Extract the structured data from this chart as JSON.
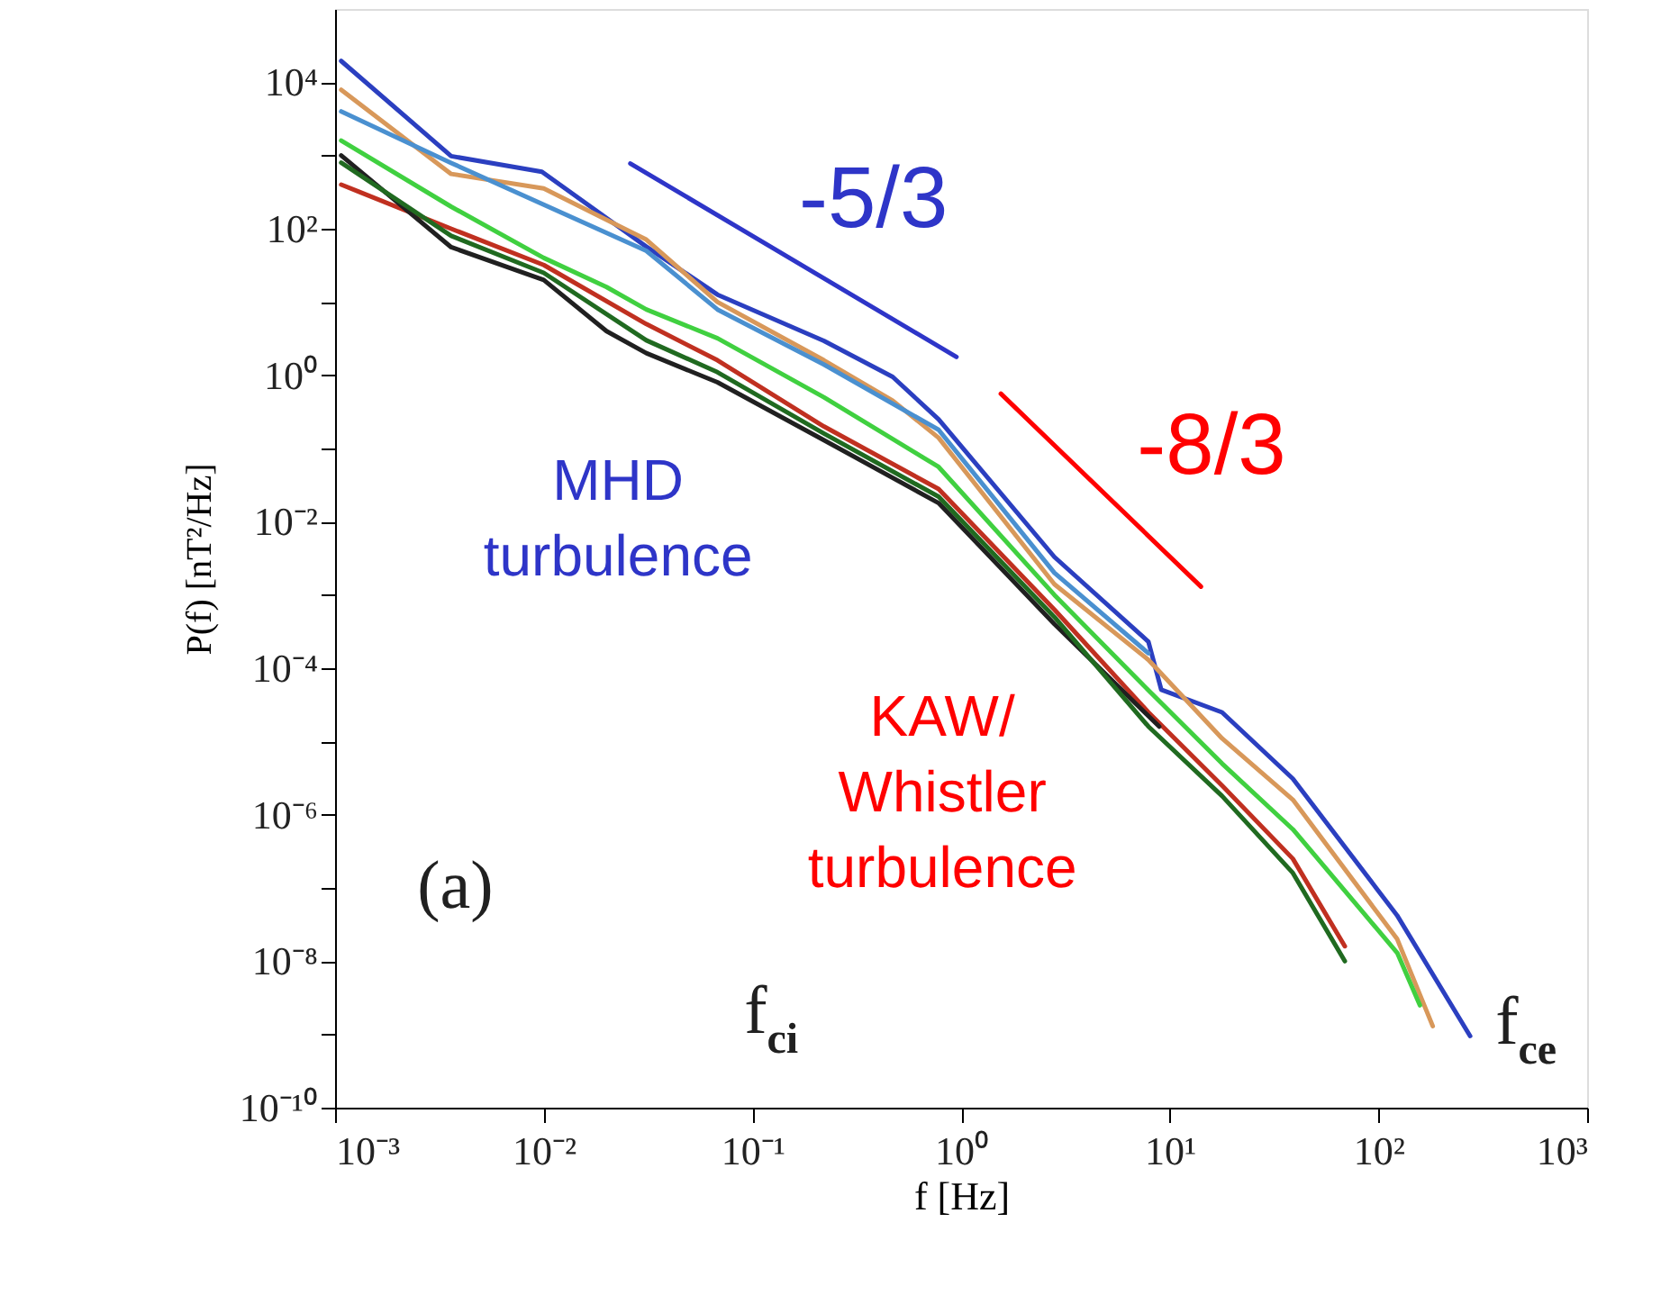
{
  "chart_data": {
    "type": "line",
    "xlabel": "f [Hz]",
    "ylabel": "P(f) [nT²/Hz]",
    "log": "xy",
    "grid": false,
    "legend": false,
    "line_style": "solid",
    "marker": "none",
    "xlim": [
      0.001,
      1000
    ],
    "ylim": [
      1e-10,
      100000
    ],
    "xticks": [
      {
        "value": 0.001,
        "label": "10⁻³"
      },
      {
        "value": 0.01,
        "label": "10⁻²"
      },
      {
        "value": 0.1,
        "label": "10⁻¹"
      },
      {
        "value": 1,
        "label": "10⁰"
      },
      {
        "value": 10,
        "label": "10¹"
      },
      {
        "value": 100,
        "label": "10²"
      },
      {
        "value": 1000,
        "label": "10³"
      }
    ],
    "yticks": [
      {
        "value": 1e-10,
        "label": "10⁻¹⁰"
      },
      {
        "value": 1e-09,
        "label": null
      },
      {
        "value": 1e-08,
        "label": "10⁻⁸"
      },
      {
        "value": 1e-07,
        "label": null
      },
      {
        "value": 1e-06,
        "label": "10⁻⁶"
      },
      {
        "value": 1e-05,
        "label": null
      },
      {
        "value": 0.0001,
        "label": "10⁻⁴"
      },
      {
        "value": 0.001,
        "label": null
      },
      {
        "value": 0.01,
        "label": "10⁻²"
      },
      {
        "value": 0.1,
        "label": null
      },
      {
        "value": 1,
        "label": "10⁰"
      },
      {
        "value": 10,
        "label": null
      },
      {
        "value": 100,
        "label": "10²"
      },
      {
        "value": 1000,
        "label": null
      },
      {
        "value": 10000,
        "label": "10⁴"
      }
    ],
    "series": [
      {
        "color": "#2b3fc0",
        "x": [
          0.00107,
          0.0036,
          0.0098,
          0.031,
          0.068,
          0.22,
          0.47,
          0.78,
          2.8,
          7.9,
          9.1,
          17.8,
          38.9,
          123,
          275
        ],
        "values": [
          19500,
          980,
          600,
          57,
          12.6,
          2.95,
          0.95,
          0.25,
          0.0033,
          0.00023,
          5.1e-05,
          2.5e-05,
          3.1e-06,
          4.2e-08,
          9.5e-10
        ]
      },
      {
        "color": "#d8985a",
        "x": [
          0.00107,
          0.0036,
          0.01,
          0.031,
          0.068,
          0.22,
          0.47,
          0.78,
          2.8,
          7.9,
          17.8,
          38.9,
          123,
          182
        ],
        "values": [
          7900,
          560,
          355,
          71,
          10,
          1.6,
          0.45,
          0.14,
          0.0014,
          0.00013,
          1.1e-05,
          1.6e-06,
          2e-08,
          1.3e-09
        ]
      },
      {
        "color": "#4a90d0",
        "x": [
          0.00107,
          0.0036,
          0.031,
          0.068,
          0.22,
          0.78,
          2.8,
          7.9
        ],
        "values": [
          4000,
          790,
          50,
          7.9,
          1.4,
          0.18,
          0.002,
          0.00016
        ]
      },
      {
        "color": "#40d040",
        "x": [
          0.00107,
          0.0036,
          0.01,
          0.02,
          0.031,
          0.068,
          0.22,
          0.78,
          2.8,
          7.9,
          17.8,
          38.9,
          123,
          158
        ],
        "values": [
          1600,
          200,
          40,
          16,
          7.9,
          3.2,
          0.5,
          0.056,
          0.001,
          5e-05,
          5e-06,
          6.3e-07,
          1.3e-08,
          2.5e-09
        ]
      },
      {
        "color": "#c03020",
        "x": [
          0.00107,
          0.0013,
          0.0036,
          0.01,
          0.031,
          0.068,
          0.22,
          0.78,
          2.8,
          7.9,
          17.8,
          38.9,
          69
        ],
        "values": [
          400,
          320,
          100,
          32,
          5,
          1.6,
          0.2,
          0.028,
          0.00063,
          2.5e-05,
          2.5e-06,
          2.5e-07,
          1.6e-08
        ]
      },
      {
        "color": "#202020",
        "x": [
          0.00107,
          0.0036,
          0.01,
          0.02,
          0.031,
          0.068,
          0.22,
          0.78,
          2.8,
          8.9
        ],
        "values": [
          1000,
          56,
          20,
          4,
          2,
          0.8,
          0.13,
          0.018,
          0.0004,
          1.6e-05
        ]
      },
      {
        "color": "#206a20",
        "x": [
          0.00107,
          0.0036,
          0.01,
          0.031,
          0.068,
          0.22,
          0.78,
          2.8,
          7.9,
          17.8,
          38.9,
          69
        ],
        "values": [
          800,
          80,
          25,
          3,
          1.1,
          0.16,
          0.022,
          0.0005,
          1.6e-05,
          1.8e-06,
          1.6e-07,
          1e-08
        ]
      },
      {
        "name": "-5/3",
        "color": "#2e35c8",
        "x": [
          0.026,
          0.95
        ],
        "values": [
          776,
          1.78
        ]
      },
      {
        "name": "-8/3",
        "color": "#ff0000",
        "x": [
          1.55,
          14.1
        ],
        "values": [
          0.56,
          0.0013
        ]
      }
    ],
    "annotations": [
      "MHD turbulence",
      "KAW/ Whistler turbulence",
      "(a)",
      "f$_{ci}$",
      "f$_{ce}$"
    ]
  }
}
